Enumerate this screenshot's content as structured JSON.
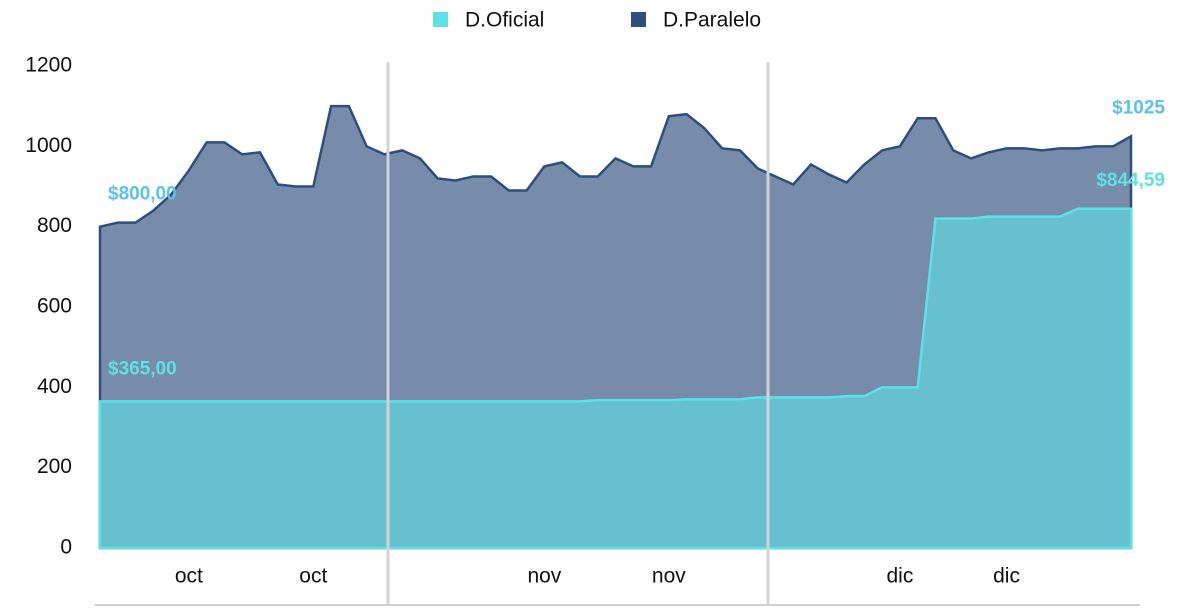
{
  "chart_data": {
    "type": "area",
    "categories": [
      null,
      null,
      null,
      null,
      null,
      "oct",
      null,
      null,
      null,
      null,
      null,
      null,
      "oct",
      null,
      null,
      null,
      null,
      null,
      null,
      null,
      null,
      null,
      null,
      null,
      null,
      "nov",
      null,
      null,
      null,
      null,
      null,
      null,
      "nov",
      null,
      null,
      null,
      null,
      null,
      null,
      null,
      null,
      null,
      null,
      null,
      null,
      "dic",
      null,
      null,
      null,
      null,
      null,
      "dic",
      null,
      null,
      null,
      null,
      null,
      null,
      null
    ],
    "series": [
      {
        "name": "D.Oficial",
        "color": "#5ce1e6",
        "label_color": "#5ce1e6",
        "values": [
          365,
          365,
          365,
          365,
          365,
          365,
          365,
          365,
          365,
          365,
          365,
          365,
          365,
          365,
          365,
          365,
          365,
          365,
          365,
          365,
          365,
          365,
          365,
          365,
          365,
          365,
          365,
          365,
          368,
          368,
          368,
          368,
          368,
          370,
          370,
          370,
          370,
          375,
          375,
          375,
          375,
          375,
          378,
          378,
          400,
          400,
          400,
          820,
          820,
          820,
          825,
          825,
          825,
          825,
          825,
          844.59,
          844.59,
          844.59,
          844.59
        ],
        "value_labels": [
          "$365,00",
          null,
          null,
          null,
          null,
          null,
          null,
          null,
          null,
          null,
          null,
          null,
          null,
          null,
          null,
          null,
          null,
          null,
          null,
          null,
          null,
          null,
          null,
          null,
          null,
          null,
          null,
          null,
          null,
          null,
          null,
          null,
          null,
          null,
          null,
          null,
          null,
          null,
          null,
          null,
          null,
          null,
          null,
          null,
          null,
          null,
          null,
          null,
          null,
          null,
          null,
          null,
          null,
          null,
          null,
          null,
          null,
          null,
          "$844,59"
        ]
      },
      {
        "name": "D.Paralelo",
        "color": "#2e4e7e",
        "label_color": "#5bc0f0",
        "values": [
          800,
          810,
          810,
          840,
          880,
          940,
          1010,
          1010,
          980,
          985,
          905,
          900,
          900,
          1100,
          1100,
          1000,
          980,
          990,
          970,
          920,
          915,
          925,
          925,
          890,
          890,
          950,
          960,
          925,
          925,
          970,
          950,
          950,
          1075,
          1080,
          1045,
          995,
          990,
          945,
          925,
          905,
          955,
          930,
          910,
          955,
          990,
          1000,
          1070,
          1070,
          990,
          970,
          985,
          995,
          995,
          990,
          995,
          995,
          1000,
          1000,
          1025
        ],
        "value_labels": [
          "$800,00",
          null,
          null,
          null,
          null,
          null,
          null,
          null,
          null,
          null,
          null,
          null,
          null,
          null,
          null,
          null,
          null,
          null,
          null,
          null,
          null,
          null,
          null,
          null,
          null,
          null,
          null,
          null,
          null,
          null,
          null,
          null,
          null,
          null,
          null,
          null,
          null,
          null,
          null,
          null,
          null,
          null,
          null,
          null,
          null,
          null,
          null,
          null,
          null,
          null,
          null,
          null,
          null,
          null,
          null,
          null,
          null,
          null,
          "$1025"
        ]
      }
    ],
    "ylim": [
      0,
      1200
    ],
    "yticks": [
      0,
      200,
      400,
      600,
      800,
      1000,
      1200
    ],
    "legend": "top"
  }
}
